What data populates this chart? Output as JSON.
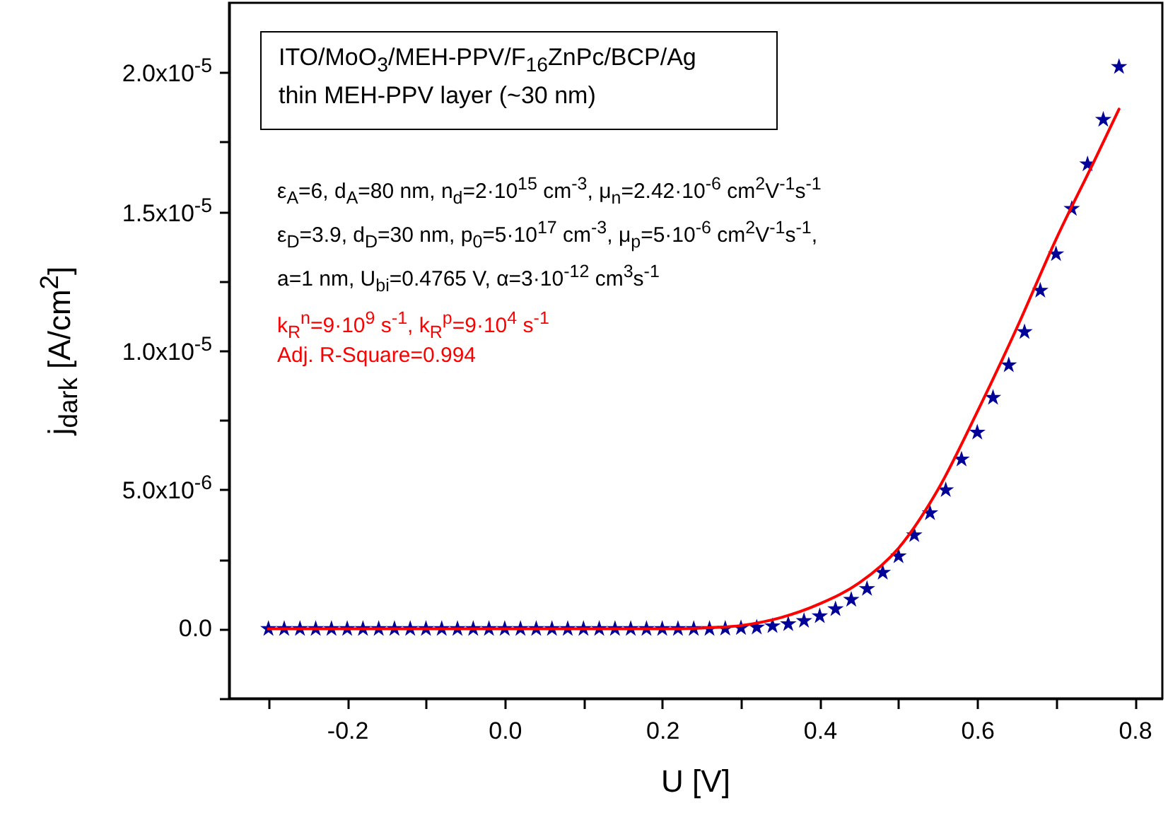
{
  "chart_data": {
    "type": "scatter",
    "xlabel": "U [V]",
    "ylabel": "j$_{dark}$ [A/cm$^{2}$]",
    "annotations": [
      "ITO/MoO$_{3}$/MEH-PPV/F$_{16}$ZnPc/BCP/Ag",
      "thin MEH-PPV layer (~30 nm)",
      "ε$_{A}$=6, d$_{A}$=80 nm, n$_{d}$=2·10$^{15}$ cm$^{-3}$, μ$_{n}$=2.42·10$^{-6}$ cm$^{2}$V$^{-1}$s$^{-1}$",
      "ε$_{D}$=3.9, d$_{D}$=30 nm, p$_{0}$=5·10$^{17}$ cm$^{-3}$, μ$_{p}$=5·10$^{-6}$ cm$^{2}$V$^{-1}$s$^{-1}$,",
      "a=1 nm, U$_{bi}$=0.4765 V,  α=3·10$^{-12}$ cm$^{3}$s$^{-1}$",
      "k$_{R}$$^{n}$=9·10$^{9}$ s$^{-1}$, k$_{R}$$^{p}$=9·10$^{4}$ s$^{-1}$",
      "Adj. R-Square=0.994"
    ],
    "xlim": [
      -0.35,
      0.835
    ],
    "ylim": [
      -2.5e-06,
      2.25e-05
    ],
    "xticks": [
      {
        "value": -0.3,
        "label": null
      },
      {
        "value": -0.2,
        "label": "-0.2"
      },
      {
        "value": -0.1,
        "label": null
      },
      {
        "value": 0,
        "label": "0.0"
      },
      {
        "value": 0.1,
        "label": null
      },
      {
        "value": 0.2,
        "label": "0.2"
      },
      {
        "value": 0.3,
        "label": null
      },
      {
        "value": 0.4,
        "label": "0.4"
      },
      {
        "value": 0.5,
        "label": null
      },
      {
        "value": 0.6,
        "label": "0.6"
      },
      {
        "value": 0.7,
        "label": null
      },
      {
        "value": 0.8,
        "label": "0.8"
      }
    ],
    "yticks": [
      {
        "value": -2.5e-06,
        "label": null
      },
      {
        "value": 0,
        "label": "0.0"
      },
      {
        "value": 2.5e-06,
        "label": null
      },
      {
        "value": 5e-06,
        "label": "5.0x10$^{-6}$"
      },
      {
        "value": 7.5e-06,
        "label": null
      },
      {
        "value": 1e-05,
        "label": "1.0x10$^{-5}$"
      },
      {
        "value": 1.25e-05,
        "label": null
      },
      {
        "value": 1.5e-05,
        "label": "1.5x10$^{-5}$"
      },
      {
        "value": 1.75e-05,
        "label": null
      },
      {
        "value": 2e-05,
        "label": "2.0x10$^{-5}$"
      }
    ],
    "grid": false,
    "marker": "star",
    "series": [
      {
        "color": "#000099",
        "x": [
          -0.3,
          -0.28,
          -0.26,
          -0.24,
          -0.22,
          -0.2,
          -0.18,
          -0.16,
          -0.14,
          -0.12,
          -0.1,
          -0.08,
          -0.06,
          -0.04,
          -0.02,
          0,
          0.02,
          0.04,
          0.06,
          0.08,
          0.1,
          0.12,
          0.14,
          0.16,
          0.18,
          0.2,
          0.22,
          0.24,
          0.26,
          0.28,
          0.3,
          0.32,
          0.34,
          0.36,
          0.38,
          0.4,
          0.42,
          0.44,
          0.46,
          0.48,
          0.5,
          0.52,
          0.54,
          0.56,
          0.58,
          0.6,
          0.62,
          0.64,
          0.66,
          0.68,
          0.7,
          0.72,
          0.74,
          0.76,
          0.78
        ],
        "values": [
          0,
          0,
          0,
          0,
          0,
          0,
          0,
          0,
          0,
          0,
          0,
          0,
          0,
          0,
          0,
          0,
          0,
          0,
          0,
          0,
          0,
          0,
          0,
          0,
          0,
          0,
          0,
          0,
          0,
          1e-08,
          3e-08,
          5e-08,
          1e-07,
          1.7e-07,
          2.9e-07,
          4.6e-07,
          7.1e-07,
          1.05e-06,
          1.44e-06,
          2.02e-06,
          2.61e-06,
          3.37e-06,
          4.16e-06,
          4.99e-06,
          6.09e-06,
          7.06e-06,
          8.31e-06,
          9.48e-06,
          1.067e-05,
          1.216e-05,
          1.347e-05,
          1.51e-05,
          1.67e-05,
          1.83e-05,
          2.02e-05
        ]
      },
      {
        "type": "line",
        "color": "#ff0000",
        "marker": "none",
        "x": [
          -0.3,
          0.2,
          0.25,
          0.3,
          0.35,
          0.4,
          0.45,
          0.5,
          0.55,
          0.6,
          0.65,
          0.7,
          0.75,
          0.78
        ],
        "values": [
          0,
          0,
          3e-08,
          1.2e-07,
          4e-07,
          9e-07,
          1.65e-06,
          2.9e-06,
          5e-06,
          7.8e-06,
          1.08e-05,
          1.4e-05,
          1.69e-05,
          1.868e-05
        ]
      }
    ]
  }
}
